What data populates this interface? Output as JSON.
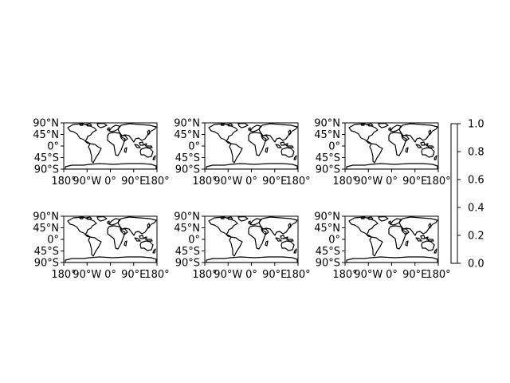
{
  "figure": {
    "panel_count": 6,
    "projection": "PlateCarree",
    "lon_ticks": [
      "180°",
      "90°W",
      "0°",
      "90°E",
      "180°"
    ],
    "lat_ticks": [
      "90°N",
      "45°N",
      "0°",
      "45°S",
      "90°S"
    ]
  },
  "colorbar": {
    "ticks": [
      "0.0",
      "0.2",
      "0.4",
      "0.6",
      "0.8",
      "1.0"
    ]
  },
  "colors": {
    "coastline": "#000000",
    "background": "#ffffff"
  }
}
